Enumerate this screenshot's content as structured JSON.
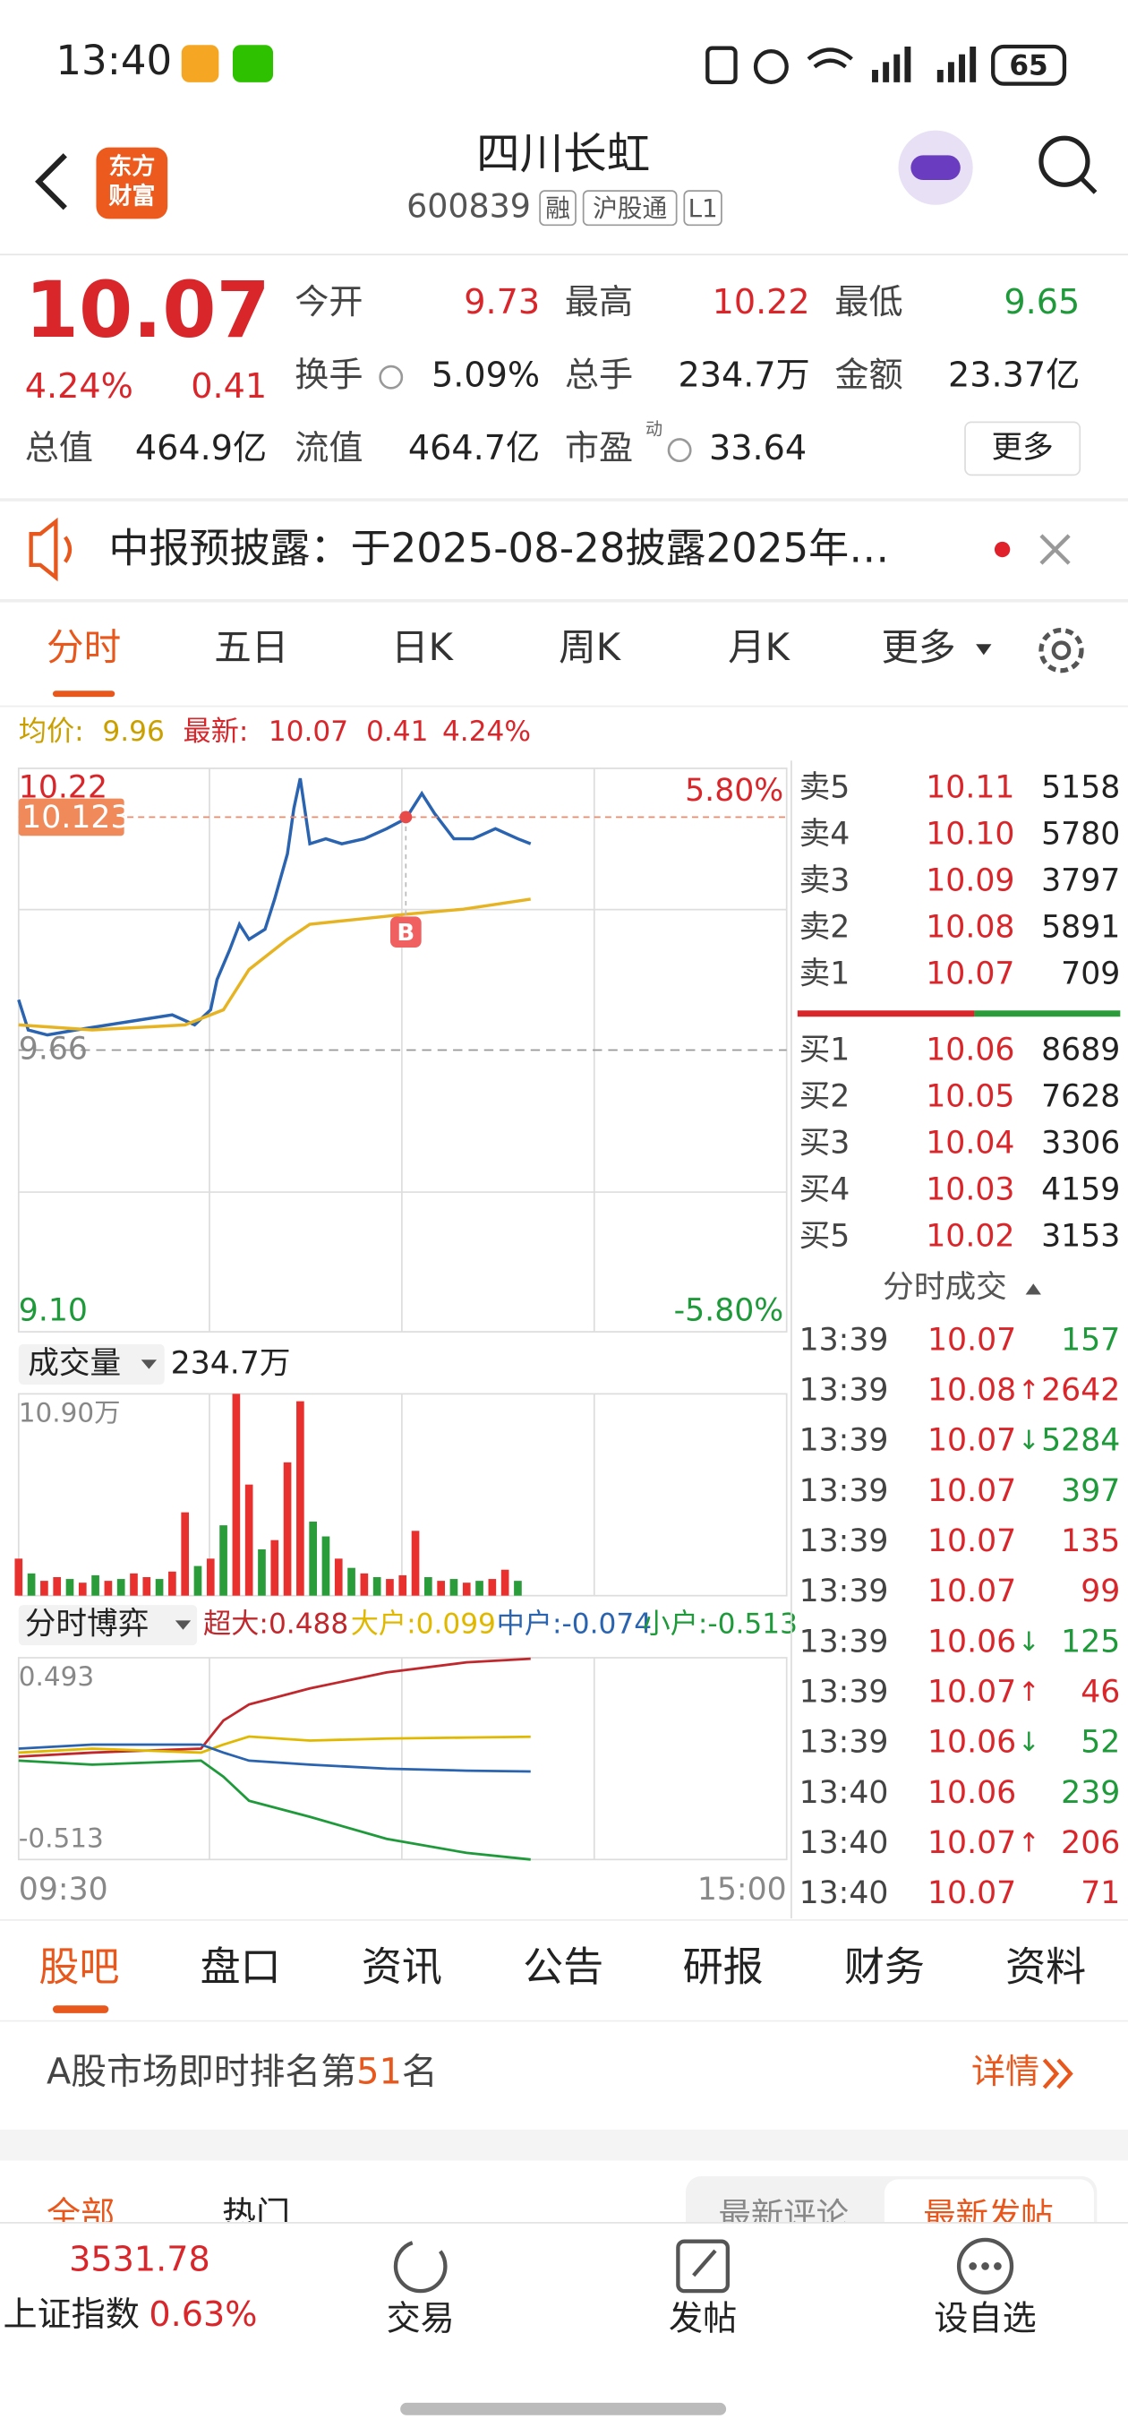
{
  "status_bar": {
    "time": "13:40",
    "battery": "65"
  },
  "header": {
    "logo": [
      "东方",
      "财富"
    ],
    "title": "四川长虹",
    "code": "600839",
    "tags": [
      "融",
      "沪股通",
      "L1"
    ]
  },
  "quote": {
    "price": "10.07",
    "change_pct": "4.24%",
    "change": "0.41",
    "fields": [
      {
        "label": "今开",
        "value": "9.73"
      },
      {
        "label": "最高",
        "value": "10.22"
      },
      {
        "label": "最低",
        "value": "9.65"
      },
      {
        "label": "换手",
        "value": "5.09%"
      },
      {
        "label": "总手",
        "value": "234.7万"
      },
      {
        "label": "金额",
        "value": "23.37亿"
      },
      {
        "label": "总值",
        "value": "464.9亿"
      },
      {
        "label": "流值",
        "value": "464.7亿"
      },
      {
        "label": "市盈",
        "value": "33.64",
        "superscript": "动"
      }
    ],
    "more": "更多"
  },
  "notice": "中报预披露：于2025-08-28披露2025年…",
  "tabs": [
    "分时",
    "五日",
    "日K",
    "周K",
    "月K",
    "更多"
  ],
  "legend": {
    "avg": "9.96",
    "latest": "10.07",
    "latest_change": "0.41",
    "latest_pct": "4.24%"
  },
  "chart_data": [
    {
      "type": "line",
      "xlim": [
        0,
        240
      ],
      "xticks": [
        {
          "value": 0,
          "label": "09:30"
        },
        {
          "value": 240,
          "label": "15:00"
        }
      ],
      "ylim": [
        9.1,
        10.22
      ],
      "yticks": [
        {
          "value": 10.22,
          "label": "10.22"
        },
        {
          "value": 9.66,
          "label": "9.66"
        },
        {
          "value": 9.1,
          "label": "9.10"
        }
      ],
      "y2lim": [
        -5.8,
        5.8
      ],
      "y2ticks": [
        {
          "value": 5.8,
          "label": "5.80%"
        },
        {
          "value": -5.8,
          "label": "-5.80%"
        }
      ],
      "series": [
        {
          "name": "最新:",
          "color": "#2a64b0",
          "x": [
            0,
            3,
            9,
            18,
            28,
            38,
            48,
            55,
            60,
            62,
            66,
            69,
            72,
            77,
            80,
            84,
            86,
            88,
            91,
            96,
            101,
            108,
            115,
            121,
            126,
            130,
            136,
            142,
            149,
            156,
            160
          ],
          "values": [
            9.76,
            9.7,
            9.69,
            9.7,
            9.71,
            9.72,
            9.73,
            9.71,
            9.74,
            9.8,
            9.86,
            9.91,
            9.88,
            9.9,
            9.96,
            10.05,
            10.14,
            10.2,
            10.07,
            10.08,
            10.07,
            10.08,
            10.1,
            10.12,
            10.17,
            10.13,
            10.08,
            10.08,
            10.1,
            10.08,
            10.07
          ]
        },
        {
          "name": "均价:",
          "color": "#e6b422",
          "x": [
            0,
            23,
            52,
            64,
            72,
            84,
            91,
            106,
            121,
            139,
            160
          ],
          "values": [
            9.71,
            9.7,
            9.71,
            9.74,
            9.82,
            9.88,
            9.91,
            9.92,
            9.93,
            9.94,
            9.96
          ]
        }
      ],
      "crosshair": {
        "x": 121,
        "value": 10.123,
        "marker": "B"
      }
    },
    {
      "type": "bar",
      "label": "成交量",
      "total": "234.7万",
      "xlim": [
        0,
        240
      ],
      "ylim": [
        0,
        10.9
      ],
      "yticks": [
        {
          "value": 10.9,
          "label": "10.90万"
        }
      ],
      "x": [
        0,
        4,
        8,
        12,
        16,
        20,
        24,
        28,
        32,
        36,
        40,
        44,
        48,
        52,
        56,
        60,
        64,
        68,
        72,
        76,
        80,
        84,
        88,
        92,
        96,
        100,
        104,
        108,
        112,
        116,
        120,
        124,
        128,
        132,
        136,
        140,
        144,
        148,
        152,
        156
      ],
      "values": [
        2.0,
        1.2,
        0.8,
        1.0,
        0.9,
        0.7,
        1.1,
        0.8,
        0.9,
        1.2,
        1.0,
        0.9,
        1.3,
        4.5,
        1.6,
        2.0,
        3.8,
        10.9,
        6.0,
        2.5,
        3.0,
        7.2,
        10.5,
        4.0,
        3.2,
        2.0,
        1.5,
        1.2,
        1.0,
        0.9,
        1.1,
        3.5,
        1.0,
        0.8,
        0.9,
        0.7,
        0.8,
        0.9,
        1.4,
        0.8
      ],
      "colors": [
        "#e8312f",
        "#2a9d3a",
        "#e8312f",
        "#e8312f",
        "#2a9d3a",
        "#e8312f",
        "#2a9d3a",
        "#e8312f",
        "#2a9d3a",
        "#e8312f",
        "#e8312f",
        "#2a9d3a",
        "#e8312f",
        "#e8312f",
        "#2a9d3a",
        "#e8312f",
        "#2a9d3a",
        "#e8312f",
        "#e8312f",
        "#2a9d3a",
        "#e8312f",
        "#e8312f",
        "#e8312f",
        "#2a9d3a",
        "#2a9d3a",
        "#e8312f",
        "#2a9d3a",
        "#e8312f",
        "#2a9d3a",
        "#e8312f",
        "#e8312f",
        "#e8312f",
        "#2a9d3a",
        "#e8312f",
        "#2a9d3a",
        "#e8312f",
        "#2a9d3a",
        "#e8312f",
        "#e8312f",
        "#2a9d3a"
      ]
    },
    {
      "type": "line",
      "label": "分时博弈",
      "legend_separator": ":",
      "xlim": [
        0,
        240
      ],
      "ylim": [
        -0.513,
        0.493
      ],
      "yticks": [
        {
          "value": 0.493,
          "label": "0.493"
        },
        {
          "value": -0.513,
          "label": "-0.513"
        }
      ],
      "x": [
        0,
        23,
        57,
        64,
        72,
        91,
        115,
        140,
        160
      ],
      "series": [
        {
          "name": "超大",
          "color": "#c0282d",
          "values": [
            0.0,
            0.02,
            0.04,
            0.18,
            0.26,
            0.34,
            0.42,
            0.47,
            0.488
          ]
        },
        {
          "name": "大户",
          "color": "#e0b800",
          "values": [
            0.02,
            0.04,
            0.02,
            0.06,
            0.1,
            0.08,
            0.09,
            0.095,
            0.099
          ]
        },
        {
          "name": "中户",
          "color": "#2a64b0",
          "values": [
            0.04,
            0.06,
            0.06,
            0.02,
            -0.02,
            -0.04,
            -0.06,
            -0.07,
            -0.074
          ]
        },
        {
          "name": "小户",
          "color": "#1e9a3a",
          "values": [
            -0.02,
            -0.04,
            -0.02,
            -0.1,
            -0.22,
            -0.3,
            -0.41,
            -0.48,
            -0.513
          ]
        }
      ]
    }
  ],
  "order_book": {
    "asks": [
      {
        "label": "卖5",
        "price": "10.11",
        "volume": "5158"
      },
      {
        "label": "卖4",
        "price": "10.10",
        "volume": "5780"
      },
      {
        "label": "卖3",
        "price": "10.09",
        "volume": "3797"
      },
      {
        "label": "卖2",
        "price": "10.08",
        "volume": "5891"
      },
      {
        "label": "卖1",
        "price": "10.07",
        "volume": "709"
      }
    ],
    "bids": [
      {
        "label": "买1",
        "price": "10.06",
        "volume": "8689"
      },
      {
        "label": "买2",
        "price": "10.05",
        "volume": "7628"
      },
      {
        "label": "买3",
        "price": "10.04",
        "volume": "3306"
      },
      {
        "label": "买4",
        "price": "10.03",
        "volume": "4159"
      },
      {
        "label": "买5",
        "price": "10.02",
        "volume": "3153"
      }
    ]
  },
  "trades": {
    "title": "分时成交",
    "rows": [
      {
        "time": "13:39",
        "price": "10.07",
        "volume": "157",
        "color": "#1e9a3a"
      },
      {
        "time": "13:39",
        "price": "10.08",
        "arrow": "↑",
        "volume": "2642",
        "color": "#d9262b"
      },
      {
        "time": "13:39",
        "price": "10.07",
        "arrow": "↓",
        "volume": "5284",
        "color": "#1e9a3a"
      },
      {
        "time": "13:39",
        "price": "10.07",
        "volume": "397",
        "color": "#1e9a3a"
      },
      {
        "time": "13:39",
        "price": "10.07",
        "volume": "135",
        "color": "#d9262b"
      },
      {
        "time": "13:39",
        "price": "10.07",
        "volume": "99",
        "color": "#d9262b"
      },
      {
        "time": "13:39",
        "price": "10.06",
        "arrow": "↓",
        "volume": "125",
        "color": "#1e9a3a"
      },
      {
        "time": "13:39",
        "price": "10.07",
        "arrow": "↑",
        "volume": "46",
        "color": "#d9262b"
      },
      {
        "time": "13:39",
        "price": "10.06",
        "arrow": "↓",
        "volume": "52",
        "color": "#1e9a3a"
      },
      {
        "time": "13:40",
        "price": "10.06",
        "volume": "239",
        "color": "#1e9a3a"
      },
      {
        "time": "13:40",
        "price": "10.07",
        "arrow": "↑",
        "volume": "206",
        "color": "#d9262b"
      },
      {
        "time": "13:40",
        "price": "10.07",
        "volume": "71",
        "color": "#d9262b"
      }
    ]
  },
  "section_tabs": [
    "股吧",
    "盘口",
    "资讯",
    "公告",
    "研报",
    "财务",
    "资料"
  ],
  "rank": {
    "prefix": "A股市场即时排名第",
    "rank": "51",
    "suffix": "名",
    "details": "详情"
  },
  "sub_tabs": [
    "全部",
    "热门",
    "最新评论",
    "最新发帖"
  ],
  "bottom_nav": {
    "index_value": "3531.78",
    "index_name": "上证指数",
    "index_change": "0.63%",
    "items": [
      "交易",
      "发帖",
      "设自选"
    ]
  }
}
